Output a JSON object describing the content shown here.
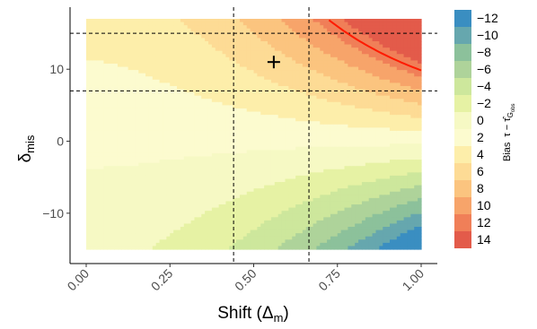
{
  "chart_data": {
    "type": "heatmap",
    "title": "",
    "xlabel": "Shift (Δ",
    "xlabel_sub": "m",
    "xlabel_close": ")",
    "ylabel": "δ",
    "ylabel_sub": "mis",
    "xlim": [
      0,
      1
    ],
    "ylim": [
      -15,
      17
    ],
    "x_ticks": [
      {
        "value": 0.0,
        "label": "0.00"
      },
      {
        "value": 0.25,
        "label": "0.25"
      },
      {
        "value": 0.5,
        "label": "0.50"
      },
      {
        "value": 0.75,
        "label": "0.75"
      },
      {
        "value": 1.0,
        "label": "1.00"
      }
    ],
    "y_ticks": [
      {
        "value": -10,
        "label": "−10"
      },
      {
        "value": 0,
        "label": "0"
      },
      {
        "value": 10,
        "label": "10"
      }
    ],
    "vlines_x": [
      0.44,
      0.665
    ],
    "hlines_y": [
      15,
      7
    ],
    "marker": {
      "x": 0.56,
      "y": 11,
      "symbol": "+"
    },
    "red_curve_level": 12,
    "legend": {
      "title": "Bias",
      "subtitle": "τ − τ̂",
      "subtitle_sub": "G",
      "subtitle_subsub": "obs",
      "position": "right",
      "entries": [
        {
          "label": "−12",
          "color": "#3a8ec1"
        },
        {
          "label": "−10",
          "color": "#66a7ae"
        },
        {
          "label": "−8",
          "color": "#8cc19b"
        },
        {
          "label": "−6",
          "color": "#aed39a"
        },
        {
          "label": "−4",
          "color": "#cde79c"
        },
        {
          "label": "−2",
          "color": "#e6f2a4"
        },
        {
          "label": "0",
          "color": "#f6f9c4"
        },
        {
          "label": "2",
          "color": "#fcfbcf"
        },
        {
          "label": "4",
          "color": "#fdeeaa"
        },
        {
          "label": "6",
          "color": "#fddb95"
        },
        {
          "label": "8",
          "color": "#fbc47f"
        },
        {
          "label": "10",
          "color": "#f7a46a"
        },
        {
          "label": "12",
          "color": "#f07f58"
        },
        {
          "label": "14",
          "color": "#e35b4a"
        }
      ]
    }
  }
}
